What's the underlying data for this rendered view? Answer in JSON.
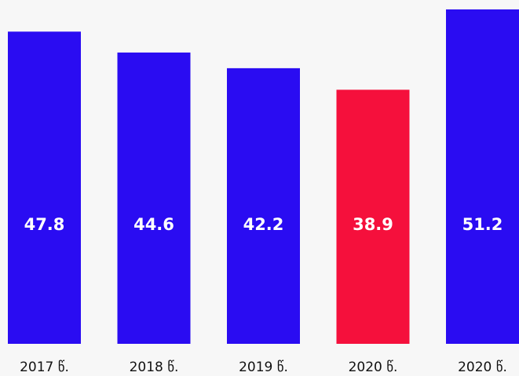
{
  "chart_data": {
    "type": "bar",
    "categories": [
      "2017 წ.",
      "2018 წ.",
      "2019 წ.",
      "2020 წ.",
      "2020 წ."
    ],
    "values": [
      47.8,
      44.6,
      42.2,
      38.9,
      51.2
    ],
    "colors": [
      "#2a0cf2",
      "#2a0cf2",
      "#2a0cf2",
      "#f5103c",
      "#2a0cf2"
    ]
  }
}
